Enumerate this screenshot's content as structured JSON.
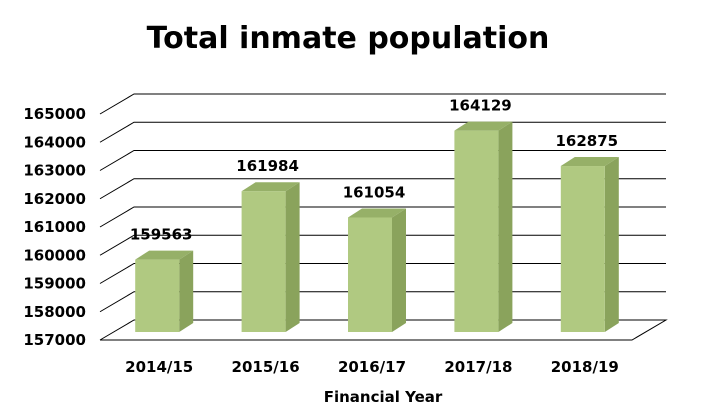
{
  "chart_data": {
    "type": "bar",
    "title": "Total inmate population",
    "xlabel": "Financial Year",
    "ylabel": "",
    "categories": [
      "2014/15",
      "2015/16",
      "2016/17",
      "2017/18",
      "2018/19"
    ],
    "values": [
      159563,
      161984,
      161054,
      164129,
      162875
    ],
    "ylim": [
      157000,
      165000
    ],
    "yticks": [
      157000,
      158000,
      159000,
      160000,
      161000,
      162000,
      163000,
      164000,
      165000
    ],
    "grid": true,
    "legend": "none",
    "style": "3d",
    "colors": {
      "bar_front": "#b0c981",
      "bar_side": "#8aa35c",
      "bar_top": "#96b068"
    }
  }
}
